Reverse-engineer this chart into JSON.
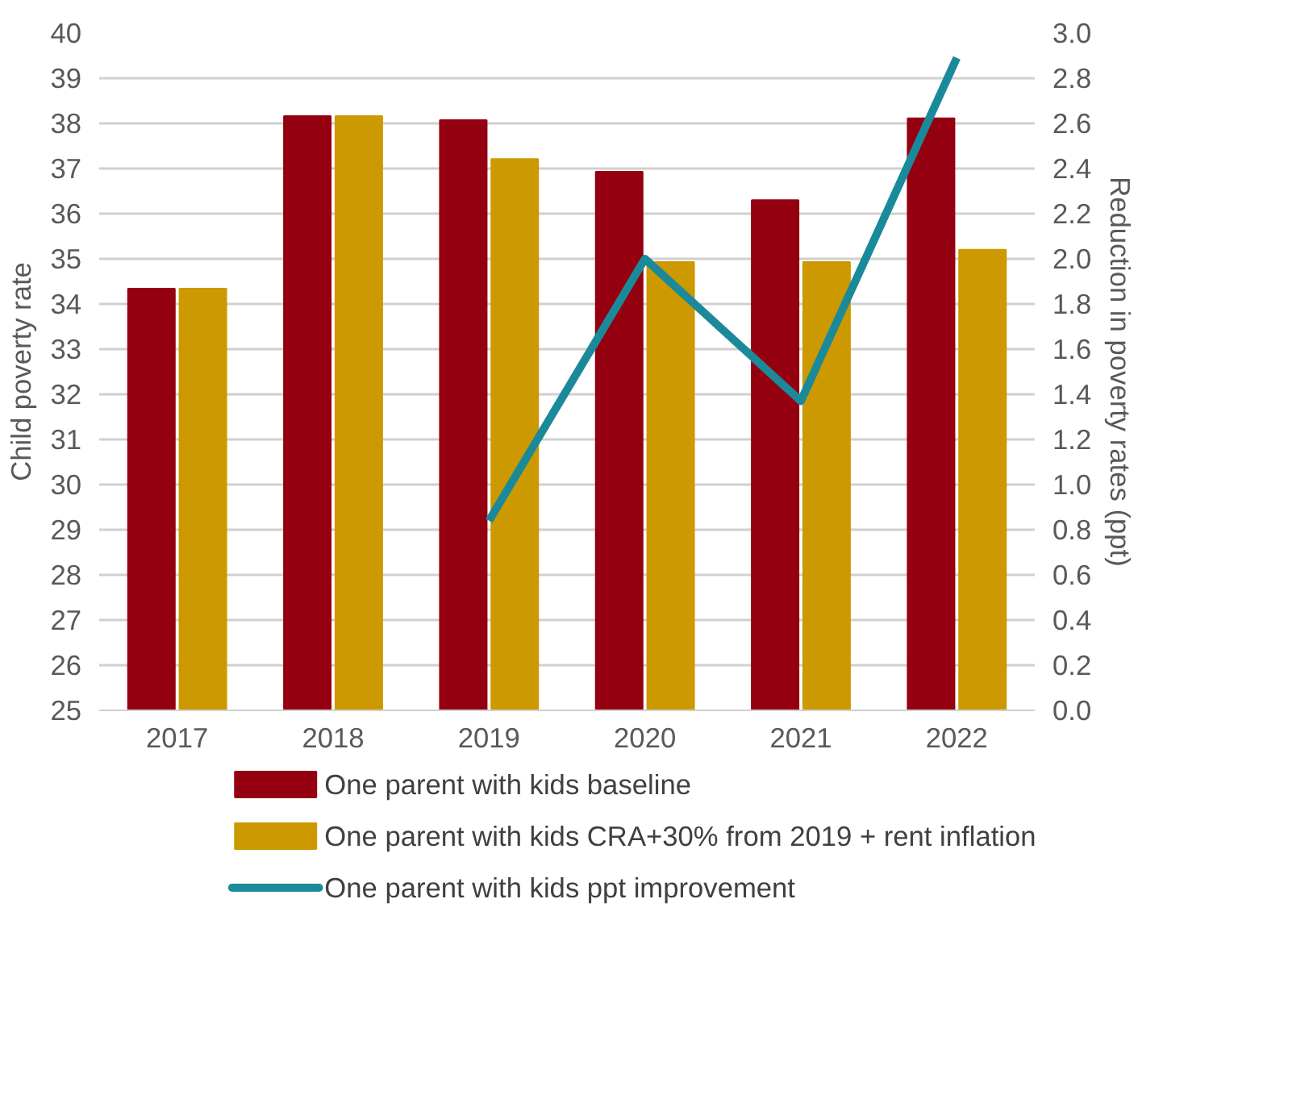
{
  "chart_data": {
    "type": "bar",
    "ylabel": "Child poverty rate",
    "y2label": "Reduction in poverty rates (ppt)",
    "categories": [
      "2017",
      "2018",
      "2019",
      "2020",
      "2021",
      "2022"
    ],
    "series": [
      {
        "name": "One parent with kids baseline",
        "color": "#940010",
        "values": [
          34.34,
          38.16,
          38.07,
          36.93,
          36.3,
          38.11
        ]
      },
      {
        "name": "One parent with kids CRA+30% from 2019 + rent inflation",
        "color": "#cc9900",
        "values": [
          34.34,
          38.16,
          37.21,
          34.93,
          34.93,
          35.2
        ]
      },
      {
        "name": "One parent with kids ppt improvement",
        "type": "line",
        "axis": "y2",
        "color": "#1a8a9a",
        "values": [
          null,
          null,
          0.84,
          2.0,
          1.37,
          2.89
        ]
      }
    ],
    "ylim": [
      25,
      40
    ],
    "yticks": [
      25,
      26,
      27,
      28,
      29,
      30,
      31,
      32,
      33,
      34,
      35,
      36,
      37,
      38,
      39,
      40
    ],
    "y2lim": [
      0,
      3
    ],
    "y2ticks": [
      {
        "value": 0,
        "label": "0.0"
      },
      {
        "value": 0.2,
        "label": "0.2"
      },
      {
        "value": 0.4,
        "label": "0.4"
      },
      {
        "value": 0.6,
        "label": "0.6"
      },
      {
        "value": 0.8,
        "label": "0.8"
      },
      {
        "value": 1,
        "label": "1.0"
      },
      {
        "value": 1.2,
        "label": "1.2"
      },
      {
        "value": 1.4,
        "label": "1.4"
      },
      {
        "value": 1.6,
        "label": "1.6"
      },
      {
        "value": 1.8,
        "label": "1.8"
      },
      {
        "value": 2,
        "label": "2.0"
      },
      {
        "value": 2.2,
        "label": "2.2"
      },
      {
        "value": 2.4,
        "label": "2.4"
      },
      {
        "value": 2.6,
        "label": "2.6"
      },
      {
        "value": 2.8,
        "label": "2.8"
      },
      {
        "value": 3,
        "label": "3.0"
      }
    ],
    "grid": "y",
    "legend": "bottom"
  }
}
